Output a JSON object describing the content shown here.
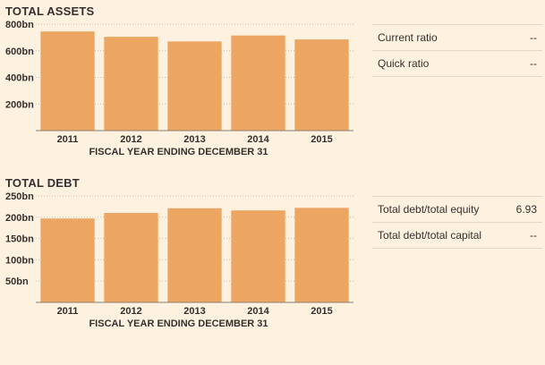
{
  "chart_data": [
    {
      "type": "bar",
      "title": "TOTAL ASSETS",
      "categories": [
        "2011",
        "2012",
        "2013",
        "2014",
        "2015"
      ],
      "values": [
        745,
        705,
        670,
        715,
        685
      ],
      "xlabel": "FISCAL YEAR ENDING DECEMBER 31",
      "ylabel": "",
      "yticks": [
        200,
        400,
        600,
        800
      ],
      "ytick_labels": [
        "200bn",
        "400bn",
        "600bn",
        "800bn"
      ],
      "ylim": [
        0,
        800
      ],
      "grid": true,
      "bar_color": "#eda662"
    },
    {
      "type": "bar",
      "title": "TOTAL DEBT",
      "categories": [
        "2011",
        "2012",
        "2013",
        "2014",
        "2015"
      ],
      "values": [
        197,
        210,
        221,
        216,
        222
      ],
      "xlabel": "FISCAL YEAR ENDING DECEMBER 31",
      "ylabel": "",
      "yticks": [
        50,
        100,
        150,
        200,
        250
      ],
      "ytick_labels": [
        "50bn",
        "100bn",
        "150bn",
        "200bn",
        "250bn"
      ],
      "ylim": [
        0,
        250
      ],
      "grid": true,
      "bar_color": "#eda662"
    }
  ],
  "ratios_top": [
    {
      "label": "Current ratio",
      "value": "--"
    },
    {
      "label": "Quick ratio",
      "value": "--"
    }
  ],
  "ratios_bottom": [
    {
      "label": "Total debt/total equity",
      "value": "6.93"
    },
    {
      "label": "Total debt/total capital",
      "value": "--"
    }
  ]
}
